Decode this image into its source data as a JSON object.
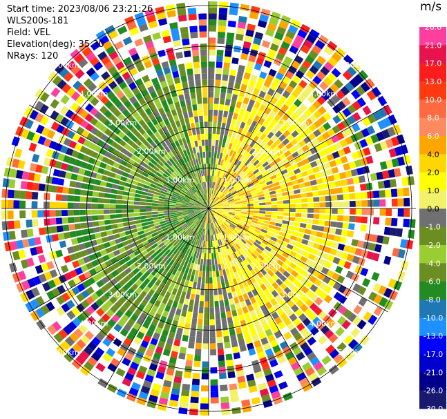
{
  "header": {
    "start_time": "Start time: 2023/08/06 23:21:26",
    "instrument": "WLS200s-181",
    "field": "Field: VEL",
    "elevation": "Elevation(deg): 35.30",
    "nrays": "NRays: 120"
  },
  "colorbar": {
    "unit": "m/s",
    "ticks": [
      "26.0",
      "21.0",
      "17.0",
      "13.0",
      "10.0",
      "8.0",
      "6.0",
      "4.0",
      "2.0",
      "1.0",
      "0.0",
      "-1.0",
      "-2.0",
      "-4.0",
      "-6.0",
      "-8.0",
      "-10.0",
      "-13.0",
      "-17.0",
      "-21.0",
      "-26.0",
      "-30.0"
    ],
    "colors": [
      "#ff3fa0",
      "#e8134a",
      "#ff1c1c",
      "#ff3a10",
      "#ff6a40",
      "#ff8a60",
      "#ffa500",
      "#ffd700",
      "#ffff00",
      "#f2f26a",
      "#707070",
      "#6b8e23",
      "#9acd32",
      "#6b8e23",
      "#228b22",
      "#1f77b4",
      "#1e90ff",
      "#0000ff",
      "#0000cd",
      "#00008b",
      "#191970"
    ]
  },
  "chart_data": {
    "type": "heatmap",
    "projection": "polar PPI",
    "field": "VEL",
    "units": "m/s",
    "nrays": 120,
    "range_ring_labels": [
      "1.00km",
      "2.00km",
      "3.00km",
      "4.00km",
      "5.00km"
    ],
    "range_rings_km": [
      1,
      2,
      3,
      4,
      5
    ],
    "max_range_km": 5.0,
    "spoke_azimuth_step_deg": 30,
    "sectors": [
      {
        "region": "east / northeast",
        "dominant": "positive 1 to 4 m/s (yellow)"
      },
      {
        "region": "west / southwest",
        "dominant": "negative -2 to -8 m/s (green)"
      },
      {
        "region": "beyond ~3.5 km",
        "dominant": "noise, full color scale"
      }
    ],
    "color_scale_min": -30.0,
    "color_scale_max": 26.0
  }
}
